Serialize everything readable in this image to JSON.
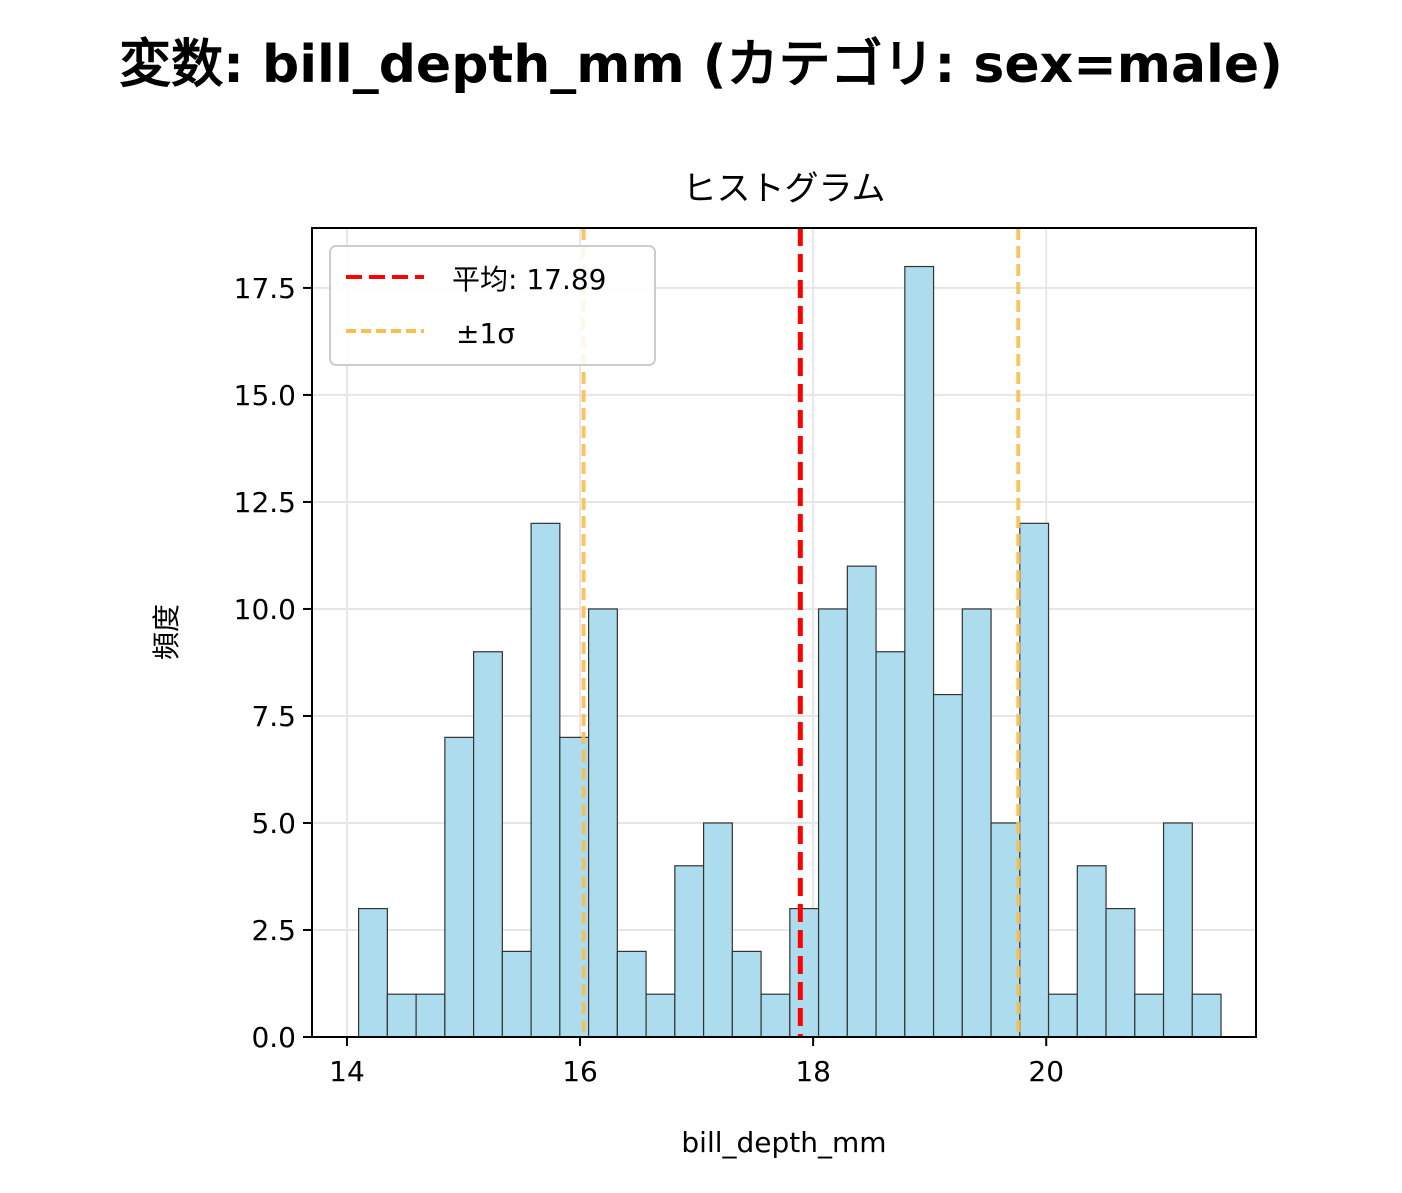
{
  "figure": {
    "suptitle": "変数: bill_depth_mm (カテゴリ: sex=male)"
  },
  "chart_data": {
    "type": "bar",
    "subtype": "histogram",
    "title": "ヒストグラム",
    "xlabel": "bill_depth_mm",
    "ylabel": "頻度",
    "xlim": [
      13.7,
      21.8
    ],
    "ylim": [
      0,
      18.9
    ],
    "xticks": [
      14,
      16,
      18,
      20
    ],
    "xtick_labels": [
      "14",
      "16",
      "18",
      "20"
    ],
    "yticks": [
      0,
      2.5,
      5,
      7.5,
      10,
      12.5,
      15,
      17.5
    ],
    "ytick_labels": [
      "0.0",
      "2.5",
      "5.0",
      "7.5",
      "10.0",
      "12.5",
      "15.0",
      "17.5"
    ],
    "grid": true,
    "legend_position": "upper-left",
    "bin_start": 14.1,
    "bin_width": 0.246667,
    "counts": [
      3,
      1,
      1,
      7,
      9,
      2,
      12,
      7,
      10,
      2,
      1,
      4,
      5,
      2,
      1,
      3,
      10,
      11,
      9,
      18,
      8,
      10,
      5,
      12,
      1,
      4,
      3,
      1,
      5,
      1
    ],
    "bar_color": "#ADDCEE",
    "bar_edge_color": "#333333",
    "reference_lines": [
      {
        "name": "mean",
        "value": 17.89,
        "legend_label": "平均: 17.89",
        "color": "#FF0000",
        "style": "dashed"
      },
      {
        "name": "minus-sigma",
        "value": 16.03,
        "legend_label": "±1σ",
        "color": "#F9BE4E",
        "style": "dashed"
      },
      {
        "name": "plus-sigma",
        "value": 19.76,
        "color": "#F9BE4E",
        "style": "dashed"
      }
    ]
  }
}
